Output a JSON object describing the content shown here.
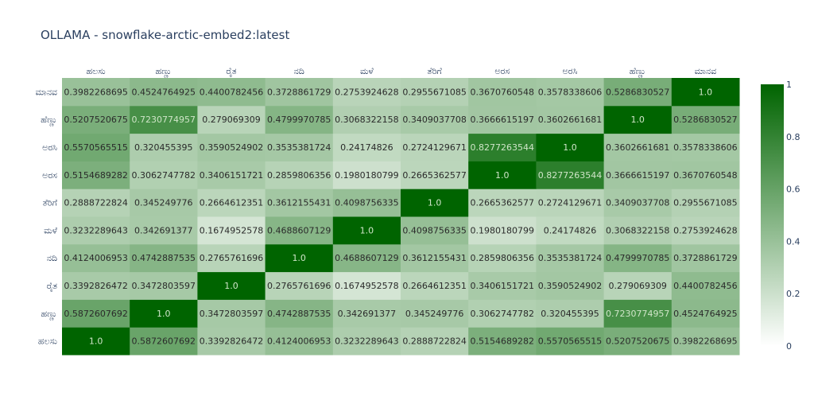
{
  "chart_data": {
    "type": "heatmap",
    "title": "OLLAMA - snowflake-arctic-embed2:latest",
    "x": [
      "ಹಲಸು",
      "ಹಣ್ಣು",
      "ರೈತ",
      "ನದಿ",
      "ಮಳೆ",
      "ತೆರಿಗೆ",
      "ಅರಸ",
      "ಅರಸಿ",
      "ಹೆಣ್ಣು",
      "ಮಾನವ"
    ],
    "y": [
      "ಹಲಸು",
      "ಹಣ್ಣು",
      "ರೈತ",
      "ನದಿ",
      "ಮಳೆ",
      "ತೆರಿಗೆ",
      "ಅರಸ",
      "ಅರಸಿ",
      "ಹೆಣ್ಣು",
      "ಮಾನವ"
    ],
    "z": [
      [
        "1.0",
        "0.5872607692",
        "0.3392826472",
        "0.4124006953",
        "0.3232289643",
        "0.2888722824",
        "0.5154689282",
        "0.5570565515",
        "0.5207520675",
        "0.3982268695"
      ],
      [
        "0.5872607692",
        "1.0",
        "0.3472803597",
        "0.4742887535",
        "0.342691377",
        "0.345249776",
        "0.3062747782",
        "0.320455395",
        "0.7230774957",
        "0.4524764925"
      ],
      [
        "0.3392826472",
        "0.3472803597",
        "1.0",
        "0.2765761696",
        "0.1674952578",
        "0.2664612351",
        "0.3406151721",
        "0.3590524902",
        "0.279069309",
        "0.4400782456"
      ],
      [
        "0.4124006953",
        "0.4742887535",
        "0.2765761696",
        "1.0",
        "0.4688607129",
        "0.3612155431",
        "0.2859806356",
        "0.3535381724",
        "0.4799970785",
        "0.3728861729"
      ],
      [
        "0.3232289643",
        "0.342691377",
        "0.1674952578",
        "0.4688607129",
        "1.0",
        "0.4098756335",
        "0.1980180799",
        "0.24174826",
        "0.3068322158",
        "0.2753924628"
      ],
      [
        "0.2888722824",
        "0.345249776",
        "0.2664612351",
        "0.3612155431",
        "0.4098756335",
        "1.0",
        "0.2665362577",
        "0.2724129671",
        "0.3409037708",
        "0.2955671085"
      ],
      [
        "0.5154689282",
        "0.3062747782",
        "0.3406151721",
        "0.2859806356",
        "0.1980180799",
        "0.2665362577",
        "1.0",
        "0.8277263544",
        "0.3666615197",
        "0.3670760548"
      ],
      [
        "0.5570565515",
        "0.320455395",
        "0.3590524902",
        "0.3535381724",
        "0.24174826",
        "0.2724129671",
        "0.8277263544",
        "1.0",
        "0.3602661681",
        "0.3578338606"
      ],
      [
        "0.5207520675",
        "0.7230774957",
        "0.279069309",
        "0.4799970785",
        "0.3068322158",
        "0.3409037708",
        "0.3666615197",
        "0.3602661681",
        "1.0",
        "0.5286830527"
      ],
      [
        "0.3982268695",
        "0.4524764925",
        "0.4400782456",
        "0.3728861729",
        "0.2753924628",
        "0.2955671085",
        "0.3670760548",
        "0.3578338606",
        "0.5286830527",
        "1.0"
      ]
    ],
    "zlim": [
      0,
      1
    ],
    "colorscale": [
      "#ffffff",
      "#006400"
    ],
    "colorbar_ticks": [
      "0",
      "0.2",
      "0.4",
      "0.6",
      "0.8",
      "1"
    ],
    "y_order": "bottom-to-top",
    "x_tick_position": "top"
  }
}
